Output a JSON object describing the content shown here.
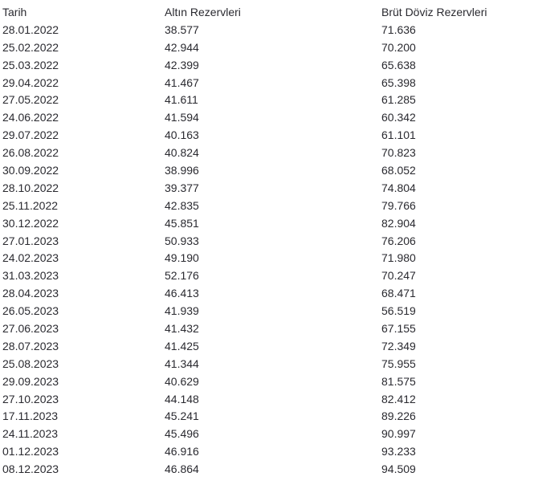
{
  "colors": {
    "background": "#ffffff",
    "text": "#2a2a30"
  },
  "table": {
    "columns": [
      "Tarih",
      "Altın Rezervleri",
      "Brüt Döviz Rezervleri"
    ],
    "rows": [
      [
        "28.01.2022",
        "38.577",
        "71.636"
      ],
      [
        "25.02.2022",
        "42.944",
        "70.200"
      ],
      [
        "25.03.2022",
        "42.399",
        "65.638"
      ],
      [
        "29.04.2022",
        "41.467",
        "65.398"
      ],
      [
        "27.05.2022",
        "41.611",
        "61.285"
      ],
      [
        "24.06.2022",
        "41.594",
        "60.342"
      ],
      [
        "29.07.2022",
        "40.163",
        "61.101"
      ],
      [
        "26.08.2022",
        "40.824",
        "70.823"
      ],
      [
        "30.09.2022",
        "38.996",
        "68.052"
      ],
      [
        "28.10.2022",
        "39.377",
        "74.804"
      ],
      [
        "25.11.2022",
        "42.835",
        "79.766"
      ],
      [
        "30.12.2022",
        "45.851",
        "82.904"
      ],
      [
        "27.01.2023",
        "50.933",
        "76.206"
      ],
      [
        "24.02.2023",
        "49.190",
        "71.980"
      ],
      [
        "31.03.2023",
        "52.176",
        "70.247"
      ],
      [
        "28.04.2023",
        "46.413",
        "68.471"
      ],
      [
        "26.05.2023",
        "41.939",
        "56.519"
      ],
      [
        "27.06.2023",
        "41.432",
        "67.155"
      ],
      [
        "28.07.2023",
        "41.425",
        "72.349"
      ],
      [
        "25.08.2023",
        "41.344",
        "75.955"
      ],
      [
        "29.09.2023",
        "40.629",
        "81.575"
      ],
      [
        "27.10.2023",
        "44.148",
        "82.412"
      ],
      [
        "17.11.2023",
        "45.241",
        "89.226"
      ],
      [
        "24.11.2023",
        "45.496",
        "90.997"
      ],
      [
        "01.12.2023",
        "46.916",
        "93.233"
      ],
      [
        "08.12.2023",
        "46.864",
        "94.509"
      ]
    ]
  },
  "chart_data": {
    "type": "table",
    "title": "",
    "columns": [
      "Tarih",
      "Altın Rezervleri",
      "Brüt Döviz Rezervleri"
    ],
    "categories": [
      "28.01.2022",
      "25.02.2022",
      "25.03.2022",
      "29.04.2022",
      "27.05.2022",
      "24.06.2022",
      "29.07.2022",
      "26.08.2022",
      "30.09.2022",
      "28.10.2022",
      "25.11.2022",
      "30.12.2022",
      "27.01.2023",
      "24.02.2023",
      "31.03.2023",
      "28.04.2023",
      "26.05.2023",
      "27.06.2023",
      "28.07.2023",
      "25.08.2023",
      "29.09.2023",
      "27.10.2023",
      "17.11.2023",
      "24.11.2023",
      "01.12.2023",
      "08.12.2023"
    ],
    "series": [
      {
        "name": "Altın Rezervleri",
        "values": [
          38.577,
          42.944,
          42.399,
          41.467,
          41.611,
          41.594,
          40.163,
          40.824,
          38.996,
          39.377,
          42.835,
          45.851,
          50.933,
          49.19,
          52.176,
          46.413,
          41.939,
          41.432,
          41.425,
          41.344,
          40.629,
          44.148,
          45.241,
          45.496,
          46.916,
          46.864
        ]
      },
      {
        "name": "Brüt Döviz Rezervleri",
        "values": [
          71.636,
          70.2,
          65.638,
          65.398,
          61.285,
          60.342,
          61.101,
          70.823,
          68.052,
          74.804,
          79.766,
          82.904,
          76.206,
          71.98,
          70.247,
          68.471,
          56.519,
          67.155,
          72.349,
          75.955,
          81.575,
          82.412,
          89.226,
          90.997,
          93.233,
          94.509
        ]
      }
    ],
    "xlabel": "Tarih",
    "ylabel": ""
  }
}
